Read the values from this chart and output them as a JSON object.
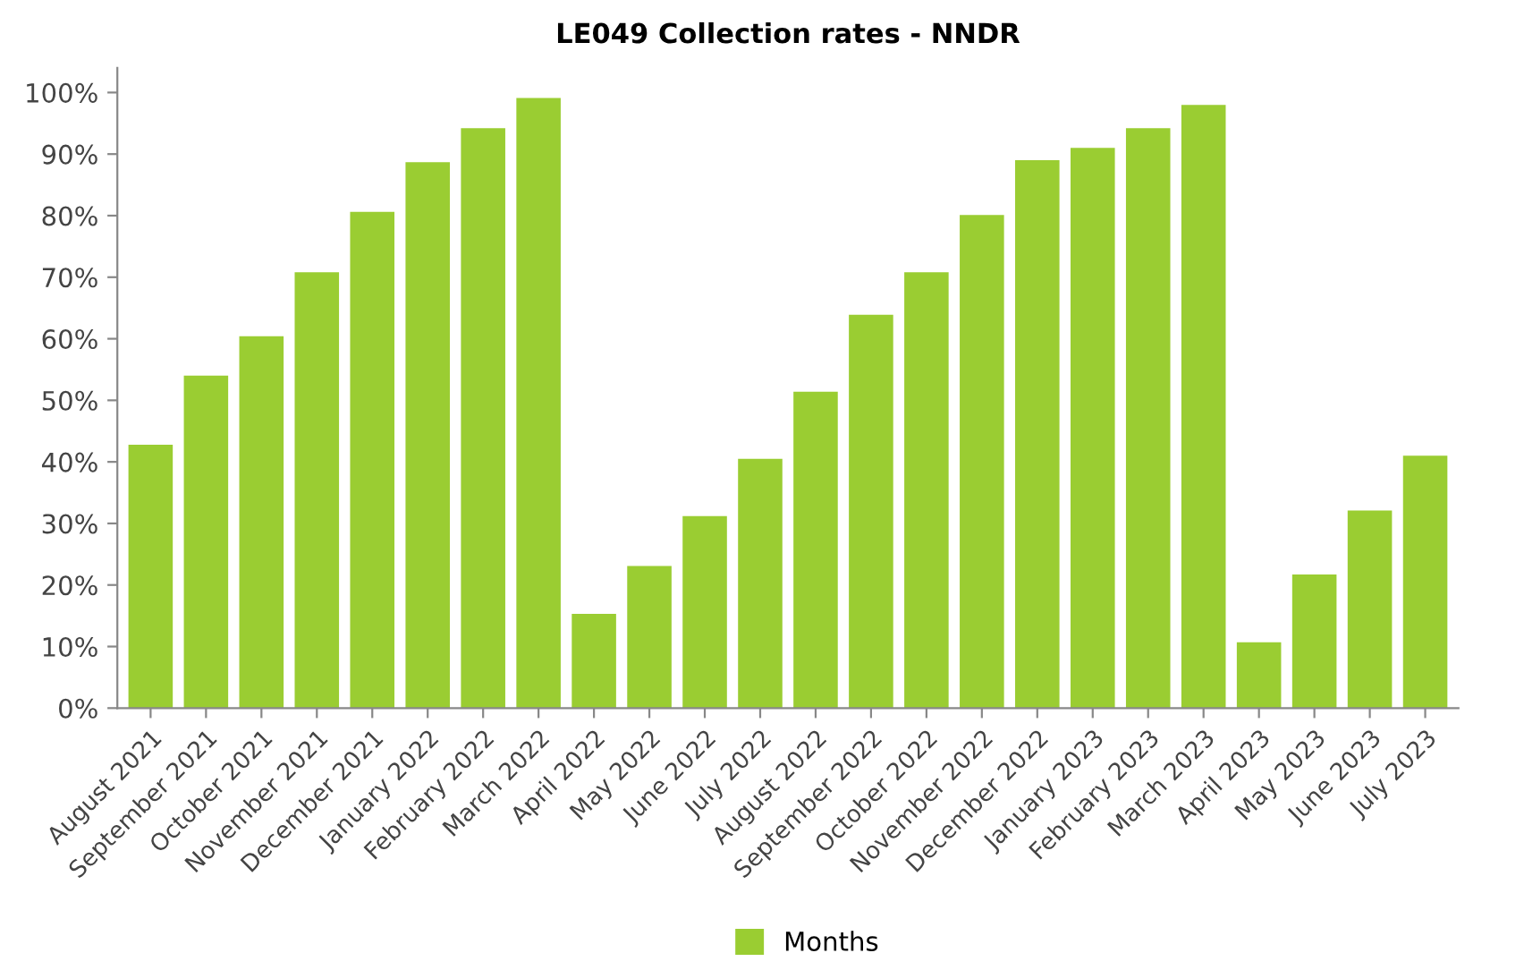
{
  "chart_data": {
    "type": "bar",
    "title": "LE049 Collection rates - NNDR",
    "categories": [
      "August 2021",
      "September 2021",
      "October 2021",
      "November 2021",
      "December 2021",
      "January 2022",
      "February 2022",
      "March 2022",
      "April 2022",
      "May 2022",
      "June 2022",
      "July 2022",
      "August 2022",
      "September 2022",
      "October 2022",
      "November 2022",
      "December 2022",
      "January 2023",
      "February 2023",
      "March 2023",
      "April 2023",
      "May 2023",
      "June 2023",
      "July 2023"
    ],
    "series": [
      {
        "name": "Months",
        "color": "#9acd32",
        "values": [
          42.8,
          54,
          60.4,
          70.8,
          80.6,
          88.7,
          94.2,
          99.1,
          15.3,
          23.1,
          31.2,
          40.5,
          51.4,
          63.9,
          70.8,
          80.1,
          89,
          91,
          94.2,
          98,
          10.7,
          21.7,
          32.1,
          41
        ]
      }
    ],
    "ylim": [
      0,
      104
    ],
    "yticks": [
      {
        "value": 0,
        "label": "0%"
      },
      {
        "value": 10,
        "label": "10%"
      },
      {
        "value": 20,
        "label": "20%"
      },
      {
        "value": 30,
        "label": "30%"
      },
      {
        "value": 40,
        "label": "40%"
      },
      {
        "value": 50,
        "label": "50%"
      },
      {
        "value": 60,
        "label": "60%"
      },
      {
        "value": 70,
        "label": "70%"
      },
      {
        "value": 80,
        "label": "80%"
      },
      {
        "value": 90,
        "label": "90%"
      },
      {
        "value": 100,
        "label": "100%"
      }
    ],
    "grid": false,
    "legend": "bottom"
  }
}
